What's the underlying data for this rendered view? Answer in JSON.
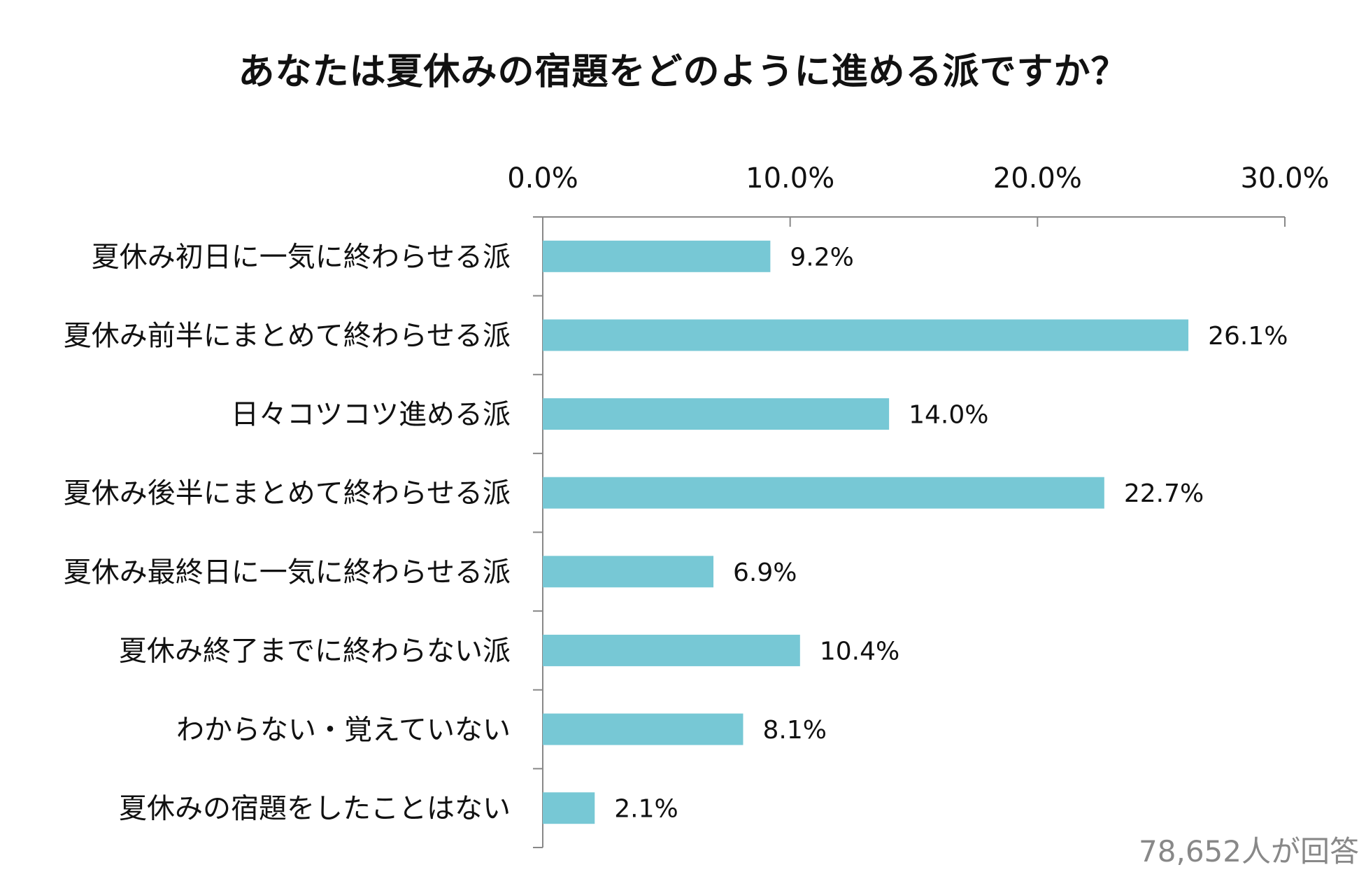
{
  "chart_data": {
    "type": "bar",
    "orientation": "horizontal",
    "title": "あなたは夏休みの宿題をどのように進める派ですか？",
    "categories": [
      "夏休み初日に一気に終わらせる派",
      "夏休み前半にまとめて終わらせる派",
      "日々コツコツ進める派",
      "夏休み後半にまとめて終わらせる派",
      "夏休み最終日に一気に終わらせる派",
      "夏休み終了までに終わらない派",
      "わからない・覚えていない",
      "夏休みの宿題をしたことはない"
    ],
    "values": [
      9.2,
      26.1,
      14.0,
      22.7,
      6.9,
      10.4,
      8.1,
      2.1
    ],
    "value_labels": [
      "9.2%",
      "26.1%",
      "14.0%",
      "22.7%",
      "6.9%",
      "10.4%",
      "8.1%",
      "2.1%"
    ],
    "xlim": [
      0,
      30
    ],
    "xticks": [
      0,
      10,
      20,
      30
    ],
    "xtick_labels": [
      "0.0%",
      "10.0%",
      "20.0%",
      "30.0%"
    ],
    "xaxis_position": "top",
    "grid": false,
    "bar_color": "#77C8D5",
    "note": "78,652人が回答"
  }
}
